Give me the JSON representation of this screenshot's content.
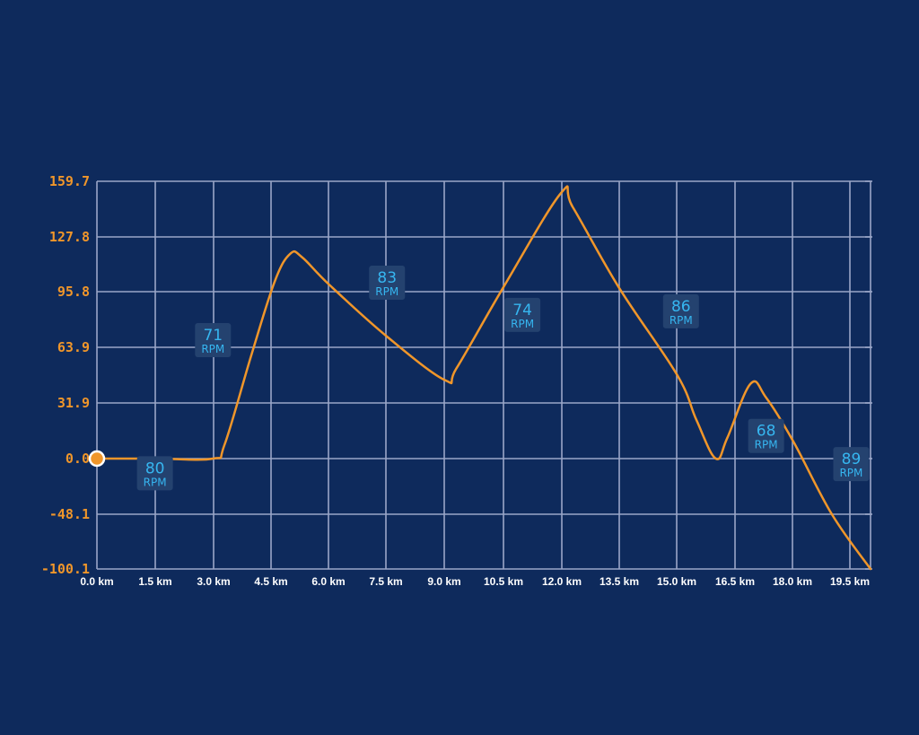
{
  "colors": {
    "background": "#0e2a5c",
    "grid": "#9aa6c8",
    "line": "#f0962a",
    "y_tick": "#f0962a",
    "x_tick": "#ffffff",
    "label_box": "#24426f",
    "label_text": "#36b6f0",
    "marker_stroke": "#ffffff"
  },
  "chart_data": {
    "type": "line",
    "title": "",
    "xlabel": "",
    "ylabel": "",
    "x_unit": "km",
    "xlim": [
      0,
      20
    ],
    "ylim": [
      -100.1,
      159.7
    ],
    "y_ticks": [
      "159.7",
      "127.8",
      "95.8",
      "63.9",
      "31.9",
      "0.0",
      "-48.1",
      "-100.1"
    ],
    "x_ticks": [
      "0.0 km",
      "1.5 km",
      "3.0 km",
      "4.5 km",
      "6.0 km",
      "7.5 km",
      "9.0 km",
      "10.5 km",
      "12.0 km",
      "13.5 km",
      "15.0 km",
      "16.5 km",
      "18.0 km",
      "19.5 km"
    ],
    "grid": true,
    "series": [
      {
        "points": [
          [
            0.0,
            0.0
          ],
          [
            1.5,
            0.0
          ],
          [
            3.0,
            0.0
          ],
          [
            3.3,
            8
          ],
          [
            4.0,
            60
          ],
          [
            4.6,
            102
          ],
          [
            5.0,
            118
          ],
          [
            5.3,
            116
          ],
          [
            6.0,
            100
          ],
          [
            7.5,
            70
          ],
          [
            9.0,
            45
          ],
          [
            9.3,
            52
          ],
          [
            10.5,
            98
          ],
          [
            12.0,
            153
          ],
          [
            12.3,
            145
          ],
          [
            13.5,
            98
          ],
          [
            15.0,
            48
          ],
          [
            15.5,
            22
          ],
          [
            16.0,
            0.0
          ],
          [
            16.3,
            12
          ],
          [
            16.9,
            43
          ],
          [
            17.3,
            35
          ],
          [
            18.0,
            10
          ],
          [
            19.0,
            -48.1
          ],
          [
            20.0,
            -100.1
          ]
        ]
      }
    ],
    "annotations": [
      {
        "x": 1.5,
        "y": -13.5,
        "value": "80",
        "unit": "RPM"
      },
      {
        "x": 3.0,
        "y": 67.5,
        "value": "71",
        "unit": "RPM"
      },
      {
        "x": 7.5,
        "y": 100.5,
        "value": "83",
        "unit": "RPM"
      },
      {
        "x": 11.0,
        "y": 82,
        "value": "74",
        "unit": "RPM"
      },
      {
        "x": 15.1,
        "y": 84,
        "value": "86",
        "unit": "RPM"
      },
      {
        "x": 17.3,
        "y": 12.5,
        "value": "68",
        "unit": "RPM"
      },
      {
        "x": 19.5,
        "y": -5.5,
        "value": "89",
        "unit": "RPM"
      }
    ],
    "start_marker": {
      "x": 0.0,
      "y": 0.0
    }
  }
}
